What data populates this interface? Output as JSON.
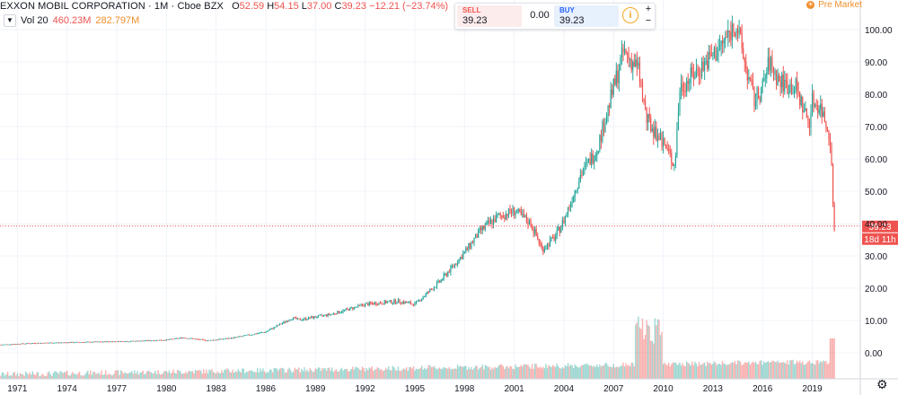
{
  "header": {
    "symbol_line": "EXXON MOBIL CORPORATION · 1M · Cboe BZX",
    "open_label": "O",
    "open": "52.59",
    "high_label": "H",
    "high": "54.15",
    "low_label": "L",
    "low": "37.00",
    "close_label": "C",
    "close": "39.23",
    "change": "−12.21 (−23.74%)",
    "volume_name": "Vol 20",
    "volume_value": "460.23M",
    "volume_ma": "282.797M",
    "collapse_icon": "chevron-down-icon"
  },
  "trade_widget": {
    "sell_label": "SELL",
    "sell_price": "39.23",
    "spread": "0.00",
    "buy_label": "BUY",
    "buy_price": "39.23",
    "info_icon": "info-icon",
    "plus": "+",
    "minus": "−"
  },
  "status": {
    "premarket_label": "Pre Market",
    "premarket_icon": "sun-icon"
  },
  "price_scale": {
    "current_price_label": "39.23",
    "countdown_label": "18d 11h",
    "settings_icon": "gear-icon"
  },
  "colors": {
    "up": "#26a69a",
    "down": "#ef5350",
    "premarket": "#ef8f2c",
    "grid": "#f0f3fa",
    "text": "#131722"
  },
  "chart_data": {
    "type": "candlestick",
    "interval": "1M",
    "x_tick_labels": [
      "1971",
      "1974",
      "1977",
      "1980",
      "1983",
      "1986",
      "1989",
      "1992",
      "1995",
      "1998",
      "2001",
      "2004",
      "2007",
      "2010",
      "2013",
      "2016",
      "2019"
    ],
    "y_tick_labels": [
      "0.00",
      "10.00",
      "20.00",
      "30.00",
      "40.00",
      "50.00",
      "60.00",
      "70.00",
      "80.00",
      "90.00",
      "100.00"
    ],
    "price_ylim": [
      -2,
      108
    ],
    "grid": true,
    "price_anchors": {
      "x": [
        1970.0,
        1972.0,
        1974.0,
        1976.0,
        1978.0,
        1980.0,
        1981.0,
        1982.5,
        1984.0,
        1986.0,
        1987.6,
        1988.0,
        1990.0,
        1992.0,
        1994.0,
        1995.0,
        1996.5,
        1998.0,
        1999.0,
        2000.0,
        2001.0,
        2002.0,
        2002.7,
        2003.5,
        2004.0,
        2005.0,
        2006.0,
        2007.0,
        2007.6,
        2008.5,
        2009.0,
        2010.0,
        2010.7,
        2011.0,
        2012.0,
        2013.0,
        2013.5,
        2014.4,
        2015.0,
        2015.5,
        2016.0,
        2016.4,
        2017.0,
        2018.0,
        2018.8,
        2019.0,
        2019.5,
        2019.9,
        2020.1,
        2020.3
      ],
      "y": [
        2.5,
        3.0,
        3.2,
        3.4,
        3.6,
        4.0,
        4.7,
        3.8,
        4.6,
        6.5,
        10.8,
        10.2,
        12.0,
        15.0,
        16.0,
        15.0,
        22.0,
        31.0,
        38.0,
        42.0,
        44.0,
        40.0,
        32.0,
        36.0,
        41.0,
        55.0,
        63.0,
        82.0,
        93.0,
        88.0,
        72.0,
        65.0,
        58.0,
        82.0,
        87.0,
        92.0,
        95.0,
        102.0,
        88.0,
        78.0,
        82.0,
        90.0,
        84.0,
        82.0,
        71.0,
        78.0,
        76.0,
        70.0,
        66.0,
        39.23
      ]
    },
    "volume_series": {
      "name": "Vol 20",
      "latest": "460.23M",
      "ma": "282.797M"
    },
    "last_price": 39.23
  }
}
